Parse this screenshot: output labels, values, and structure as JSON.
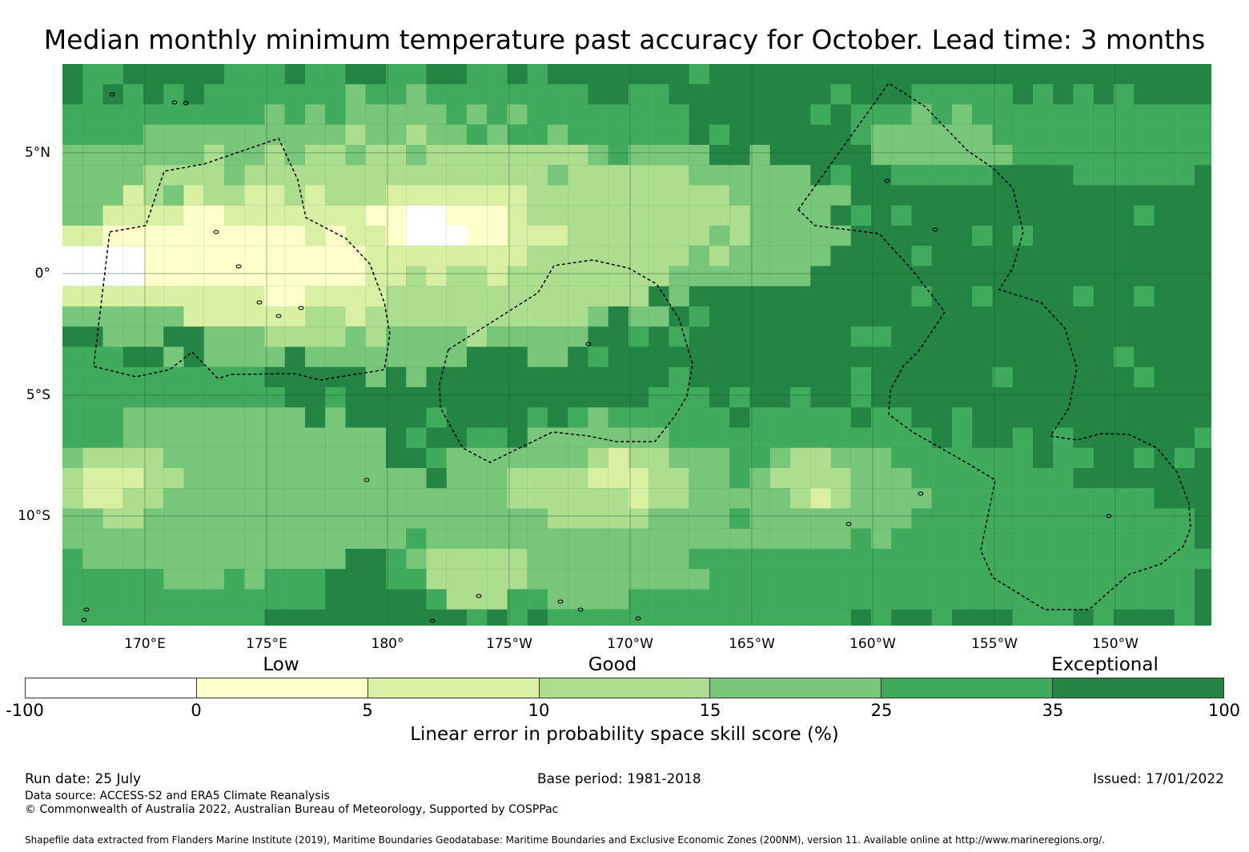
{
  "title": "Median monthly minimum temperature past accuracy for October. Lead time: 3 months",
  "map": {
    "lat_ticks": [
      "5°N",
      "0°",
      "5°S",
      "10°S"
    ],
    "lon_ticks": [
      "170°E",
      "175°E",
      "180°",
      "175°W",
      "170°W",
      "165°W",
      "160°W",
      "155°W",
      "150°W"
    ],
    "base_color": "#238443"
  },
  "legend": {
    "categories": [
      "Low",
      "Good",
      "Exceptional"
    ],
    "colors": [
      "#ffffff",
      "#ffffcc",
      "#d9f0a3",
      "#addd8e",
      "#78c679",
      "#41ab5d",
      "#238443"
    ],
    "ticks": [
      "-100",
      "0",
      "5",
      "10",
      "15",
      "25",
      "35",
      "100"
    ],
    "label": "Linear error in probability space skill score (%)"
  },
  "footer": {
    "run_date": "Run date: 25 July",
    "base_period": "Base period: 1981-2018",
    "issued": "Issued: 17/01/2022",
    "data_source": "Data source: ACCESS-S2 and ERA5 Climate Reanalysis",
    "copyright": "© Commonwealth of Australia 2022, Australian Bureau of Meteorology, Supported by COSPPac",
    "shapefile": "Shapefile data extracted from Flanders Marine Institute (2019), Maritime Boundaries Geodatabase: Maritime Boundaries and Exclusive Economic Zones (200NM), version 11. Available online at http://www.marineregions.org/."
  }
}
